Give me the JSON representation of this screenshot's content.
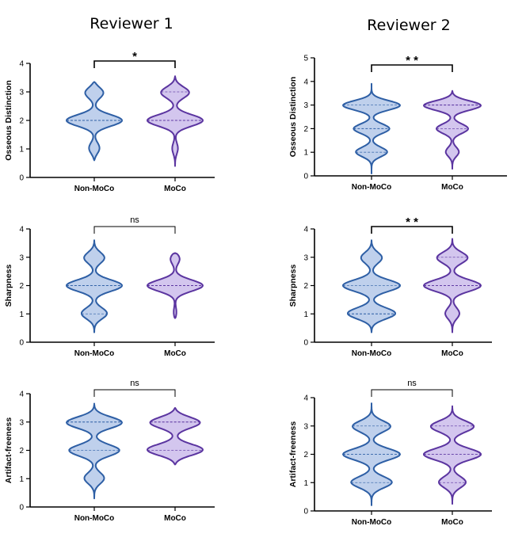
{
  "figure": {
    "columns": [
      "Reviewer 1",
      "Reviewer 2"
    ]
  },
  "chart_data": [
    {
      "type": "violin",
      "reviewer": "Reviewer 1",
      "ylabel": "Osseous Distinction",
      "ylim": [
        0,
        4
      ],
      "yticks": [
        0,
        1,
        2,
        3,
        4
      ],
      "categories": [
        "Non-MoCo",
        "MoCo"
      ],
      "significance": "*",
      "series": [
        {
          "name": "Non-MoCo",
          "color": "#2E5FA5",
          "fill": "#BFD0EC",
          "range": [
            0.6,
            3.35
          ],
          "modes": [
            [
              1.0,
              0.25
            ],
            [
              2.0,
              1.0
            ],
            [
              3.0,
              0.45
            ]
          ],
          "quartiles": [
            2.0,
            2.0,
            2.0
          ]
        },
        {
          "name": "MoCo",
          "color": "#5B35A0",
          "fill": "#D3C6EE",
          "range": [
            0.4,
            3.55
          ],
          "modes": [
            [
              1.0,
              0.12
            ],
            [
              2.0,
              0.95
            ],
            [
              3.0,
              0.6
            ]
          ],
          "quartiles": [
            2.0,
            2.0,
            3.0
          ]
        }
      ]
    },
    {
      "type": "violin",
      "reviewer": "Reviewer 2",
      "ylabel": "Osseous Distinction",
      "ylim": [
        0,
        5
      ],
      "yticks": [
        0,
        1,
        2,
        3,
        4,
        5
      ],
      "categories": [
        "Non-MoCo",
        "MoCo"
      ],
      "significance": "**",
      "series": [
        {
          "name": "Non-MoCo",
          "color": "#2E5FA5",
          "fill": "#BFD0EC",
          "range": [
            0.1,
            3.9
          ],
          "modes": [
            [
              1.0,
              0.55
            ],
            [
              2.0,
              0.55
            ],
            [
              3.0,
              1.0
            ]
          ],
          "quartiles": [
            1.0,
            2.0,
            3.0
          ]
        },
        {
          "name": "MoCo",
          "color": "#5B35A0",
          "fill": "#D3C6EE",
          "range": [
            0.3,
            3.6
          ],
          "modes": [
            [
              1.0,
              0.22
            ],
            [
              2.0,
              0.45
            ],
            [
              3.0,
              1.0
            ]
          ],
          "quartiles": [
            2.0,
            3.0,
            3.0
          ]
        }
      ]
    },
    {
      "type": "violin",
      "reviewer": "Reviewer 1",
      "ylabel": "Sharpness",
      "ylim": [
        0,
        4
      ],
      "yticks": [
        0,
        1,
        2,
        3,
        4
      ],
      "categories": [
        "Non-MoCo",
        "MoCo"
      ],
      "significance": "ns",
      "series": [
        {
          "name": "Non-MoCo",
          "color": "#2E5FA5",
          "fill": "#BFD0EC",
          "range": [
            0.35,
            3.6
          ],
          "modes": [
            [
              1.0,
              0.55
            ],
            [
              2.0,
              1.0
            ],
            [
              3.0,
              0.45
            ]
          ],
          "quartiles": [
            1.0,
            2.0,
            2.0
          ]
        },
        {
          "name": "MoCo",
          "color": "#5B35A0",
          "fill": "#D3C6EE",
          "range": [
            0.85,
            3.15
          ],
          "modes": [
            [
              1.0,
              0.08
            ],
            [
              2.0,
              1.0
            ],
            [
              3.0,
              0.27
            ]
          ],
          "quartiles": [
            2.0,
            2.0,
            2.0
          ]
        }
      ]
    },
    {
      "type": "violin",
      "reviewer": "Reviewer 2",
      "ylabel": "Sharpness",
      "ylim": [
        0,
        4
      ],
      "yticks": [
        0,
        1,
        2,
        3,
        4
      ],
      "categories": [
        "Non-MoCo",
        "MoCo"
      ],
      "significance": "**",
      "series": [
        {
          "name": "Non-MoCo",
          "color": "#2E5FA5",
          "fill": "#BFD0EC",
          "range": [
            0.35,
            3.6
          ],
          "modes": [
            [
              1.0,
              1.0
            ],
            [
              2.0,
              1.0
            ],
            [
              3.0,
              0.45
            ]
          ],
          "quartiles": [
            1.0,
            1.0,
            2.0
          ]
        },
        {
          "name": "MoCo",
          "color": "#5B35A0",
          "fill": "#D3C6EE",
          "range": [
            0.35,
            3.65
          ],
          "modes": [
            [
              1.0,
              0.3
            ],
            [
              2.0,
              1.0
            ],
            [
              3.0,
              0.65
            ]
          ],
          "quartiles": [
            2.0,
            2.0,
            3.0
          ]
        }
      ]
    },
    {
      "type": "violin",
      "reviewer": "Reviewer 1",
      "ylabel": "Artifact-freeness",
      "ylim": [
        0,
        4
      ],
      "yticks": [
        0,
        1,
        2,
        3,
        4
      ],
      "categories": [
        "Non-MoCo",
        "MoCo"
      ],
      "significance": "ns",
      "series": [
        {
          "name": "Non-MoCo",
          "color": "#2E5FA5",
          "fill": "#BFD0EC",
          "range": [
            0.3,
            3.65
          ],
          "modes": [
            [
              1.0,
              0.35
            ],
            [
              2.0,
              0.75
            ],
            [
              3.0,
              1.0
            ]
          ],
          "quartiles": [
            2.0,
            3.0,
            3.0
          ]
        },
        {
          "name": "MoCo",
          "color": "#5B35A0",
          "fill": "#D3C6EE",
          "range": [
            1.5,
            3.5
          ],
          "modes": [
            [
              2.0,
              1.0
            ],
            [
              3.0,
              0.9
            ]
          ],
          "quartiles": [
            2.0,
            3.0,
            3.0
          ]
        }
      ]
    },
    {
      "type": "violin",
      "reviewer": "Reviewer 2",
      "ylabel": "Artifact-freeness",
      "ylim": [
        0,
        4
      ],
      "yticks": [
        0,
        1,
        2,
        3,
        4
      ],
      "categories": [
        "Non-MoCo",
        "MoCo"
      ],
      "significance": "ns",
      "series": [
        {
          "name": "Non-MoCo",
          "color": "#2E5FA5",
          "fill": "#BFD0EC",
          "range": [
            0.2,
            3.8
          ],
          "modes": [
            [
              1.0,
              0.75
            ],
            [
              2.0,
              0.9
            ],
            [
              3.0,
              0.7
            ]
          ],
          "quartiles": [
            1.0,
            2.0,
            3.0
          ]
        },
        {
          "name": "MoCo",
          "color": "#5B35A0",
          "fill": "#D3C6EE",
          "range": [
            0.25,
            3.7
          ],
          "modes": [
            [
              1.0,
              0.55
            ],
            [
              2.0,
              1.0
            ],
            [
              3.0,
              0.9
            ]
          ],
          "quartiles": [
            1.0,
            2.0,
            3.0
          ]
        }
      ]
    }
  ]
}
